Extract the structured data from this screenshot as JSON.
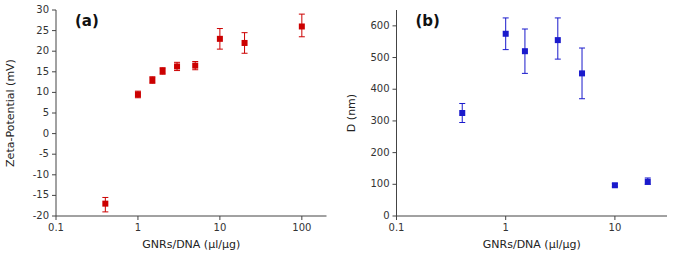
{
  "chart_data": [
    {
      "type": "scatter",
      "title": "(a)",
      "xlabel": "GNRs/DNA (μl/μg)",
      "ylabel": "Zeta-Potential (mV)",
      "x": [
        0.4,
        1.0,
        1.5,
        2.0,
        3.0,
        5.0,
        10.0,
        20.0,
        100.0
      ],
      "values": [
        -17.0,
        9.5,
        13.0,
        15.2,
        16.3,
        16.5,
        23.0,
        22.0,
        26.0
      ],
      "error_minus": [
        2.0,
        0.8,
        0.8,
        0.8,
        1.0,
        1.0,
        2.5,
        2.5,
        2.5
      ],
      "error_plus": [
        1.5,
        0.8,
        0.8,
        0.8,
        1.0,
        1.0,
        2.5,
        2.5,
        3.0
      ],
      "color": "#cc0000",
      "marker": "square",
      "log": "x",
      "grid": false,
      "xlim": [
        0.1,
        200
      ],
      "xticks": [
        0.1,
        1,
        10,
        100
      ],
      "ylim": [
        -20,
        30
      ],
      "yticks": [
        -20,
        -15,
        -10,
        -5,
        0,
        5,
        10,
        15,
        20,
        25,
        30
      ]
    },
    {
      "type": "scatter",
      "title": "(b)",
      "xlabel": "GNRs/DNA (μl/μg)",
      "ylabel": "D (nm)",
      "x": [
        0.4,
        1.0,
        1.5,
        3.0,
        5.0,
        10.0,
        20.0
      ],
      "values": [
        325.0,
        575.0,
        520.0,
        555.0,
        450.0,
        97.0,
        108.0
      ],
      "error_minus": [
        30.0,
        50.0,
        70.0,
        60.0,
        80.0,
        5.0,
        8.0
      ],
      "error_plus": [
        30.0,
        50.0,
        70.0,
        70.0,
        80.0,
        5.0,
        12.0
      ],
      "color": "#1a1acc",
      "marker": "square",
      "log": "x",
      "grid": false,
      "xlim": [
        0.1,
        30
      ],
      "xticks": [
        0.1,
        1,
        10
      ],
      "ylim": [
        0,
        650
      ],
      "yticks": [
        0,
        100,
        200,
        300,
        400,
        500,
        600
      ]
    }
  ]
}
